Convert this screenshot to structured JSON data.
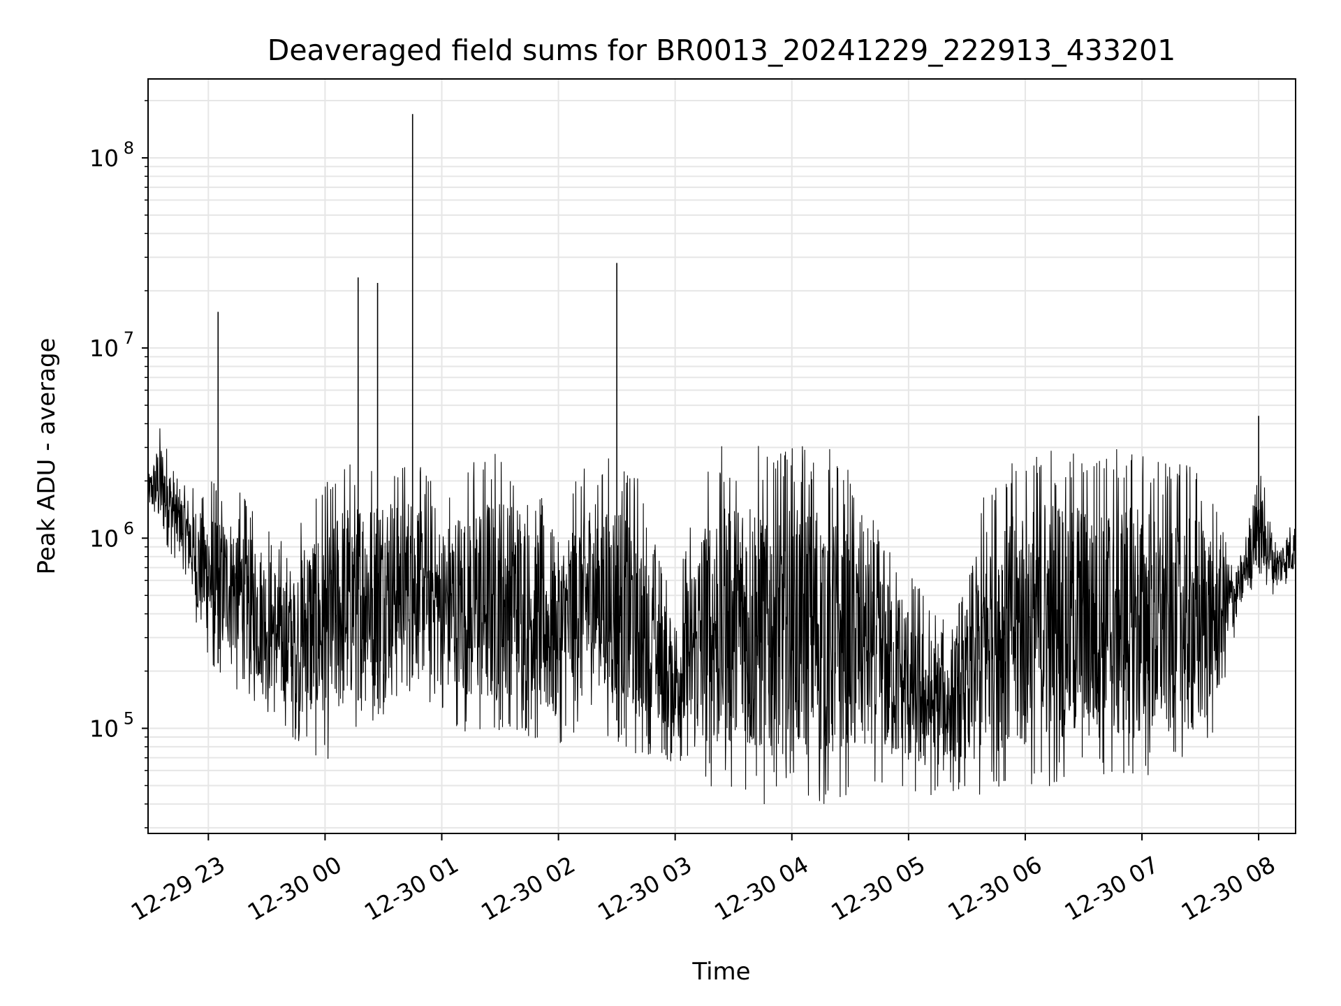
{
  "chart_data": {
    "type": "line",
    "title": "Deaveraged field sums for BR0013_20241229_222913_433201",
    "xlabel": "Time",
    "ylabel": "Peak ADU - average",
    "y_scale": "log",
    "ylim": [
      28000,
      260000000
    ],
    "xlim": [
      "2024-12-29 22:29",
      "2024-12-30 08:19"
    ],
    "grid": true,
    "line_color": "#000000",
    "grid_color": "#e6e6e6",
    "x_ticks": [
      {
        "label": "12-29 23",
        "time": "2024-12-29 23:00"
      },
      {
        "label": "12-30 00",
        "time": "2024-12-30 00:00"
      },
      {
        "label": "12-30 01",
        "time": "2024-12-30 01:00"
      },
      {
        "label": "12-30 02",
        "time": "2024-12-30 02:00"
      },
      {
        "label": "12-30 03",
        "time": "2024-12-30 03:00"
      },
      {
        "label": "12-30 04",
        "time": "2024-12-30 04:00"
      },
      {
        "label": "12-30 05",
        "time": "2024-12-30 05:00"
      },
      {
        "label": "12-30 06",
        "time": "2024-12-30 06:00"
      },
      {
        "label": "12-30 07",
        "time": "2024-12-30 07:00"
      },
      {
        "label": "12-30 08",
        "time": "2024-12-30 08:00"
      }
    ],
    "y_ticks": [
      {
        "base": "10",
        "exp": "5",
        "value": 100000
      },
      {
        "base": "10",
        "exp": "6",
        "value": 1000000
      },
      {
        "base": "10",
        "exp": "7",
        "value": 10000000
      },
      {
        "base": "10",
        "exp": "8",
        "value": 100000000
      }
    ],
    "series": [
      {
        "x": [
          "2024-12-29 22:29",
          "2024-12-29 22:35",
          "2024-12-29 22:40",
          "2024-12-29 22:45",
          "2024-12-29 22:50",
          "2024-12-29 22:55",
          "2024-12-29 23:00",
          "2024-12-29 23:05",
          "2024-12-29 23:10",
          "2024-12-29 23:15",
          "2024-12-29 23:20",
          "2024-12-29 23:30",
          "2024-12-29 23:40",
          "2024-12-29 23:50",
          "2024-12-30 00:00",
          "2024-12-30 00:10",
          "2024-12-30 00:20",
          "2024-12-30 00:30",
          "2024-12-30 00:40",
          "2024-12-30 00:50",
          "2024-12-30 01:00",
          "2024-12-30 01:10",
          "2024-12-30 01:20",
          "2024-12-30 01:30",
          "2024-12-30 01:40",
          "2024-12-30 01:50",
          "2024-12-30 02:00",
          "2024-12-30 02:10",
          "2024-12-30 02:20",
          "2024-12-30 02:30",
          "2024-12-30 02:40",
          "2024-12-30 02:50",
          "2024-12-30 03:00",
          "2024-12-30 03:10",
          "2024-12-30 03:20",
          "2024-12-30 03:30",
          "2024-12-30 03:40",
          "2024-12-30 03:50",
          "2024-12-30 04:00",
          "2024-12-30 04:10",
          "2024-12-30 04:20",
          "2024-12-30 04:30",
          "2024-12-30 04:40",
          "2024-12-30 04:50",
          "2024-12-30 05:00",
          "2024-12-30 05:10",
          "2024-12-30 05:20",
          "2024-12-30 05:30",
          "2024-12-30 05:40",
          "2024-12-30 05:50",
          "2024-12-30 06:00",
          "2024-12-30 06:10",
          "2024-12-30 06:20",
          "2024-12-30 06:30",
          "2024-12-30 06:40",
          "2024-12-30 06:50",
          "2024-12-30 07:00",
          "2024-12-30 07:10",
          "2024-12-30 07:20",
          "2024-12-30 07:30",
          "2024-12-30 07:40",
          "2024-12-30 07:50",
          "2024-12-30 08:00",
          "2024-12-30 08:05",
          "2024-12-30 08:10",
          "2024-12-30 08:15",
          "2024-12-30 08:19"
        ],
        "y_high": [
          2000000,
          3500000,
          2500000,
          1800000,
          1700000,
          1500000,
          1600000,
          1400000,
          1300000,
          1500000,
          1200000,
          900000,
          700000,
          1100000,
          1300000,
          1700000,
          1800000,
          1900000,
          1800000,
          1700000,
          1200000,
          1600000,
          1800000,
          1900000,
          1700000,
          1200000,
          900000,
          1600000,
          1900000,
          1800000,
          1500000,
          700000,
          400000,
          1000000,
          1900000,
          2000000,
          2000000,
          1900000,
          1900000,
          1900000,
          1800000,
          1400000,
          900000,
          700000,
          500000,
          350000,
          300000,
          400000,
          1500000,
          1700000,
          1800000,
          1900000,
          1900000,
          1900000,
          1900000,
          1900000,
          1800000,
          1600000,
          1700000,
          1500000,
          1000000,
          700000,
          2000000,
          1400000,
          900000,
          1100000,
          1200000
        ],
        "y_low": [
          1500000,
          1100000,
          900000,
          800000,
          600000,
          350000,
          250000,
          220000,
          250000,
          200000,
          180000,
          150000,
          120000,
          100000,
          90000,
          120000,
          150000,
          140000,
          200000,
          180000,
          150000,
          130000,
          120000,
          120000,
          130000,
          110000,
          100000,
          120000,
          140000,
          110000,
          100000,
          90000,
          80000,
          70000,
          65000,
          65000,
          60000,
          60000,
          60000,
          60000,
          60000,
          65000,
          70000,
          65000,
          60000,
          55000,
          55000,
          55000,
          60000,
          65000,
          70000,
          70000,
          75000,
          75000,
          75000,
          75000,
          75000,
          80000,
          85000,
          85000,
          150000,
          400000,
          700000,
          550000,
          550000,
          600000,
          700000
        ]
      }
    ],
    "spikes": [
      {
        "time": "2024-12-29 23:05",
        "value": 15500000
      },
      {
        "time": "2024-12-30 00:17",
        "value": 23500000
      },
      {
        "time": "2024-12-30 00:27",
        "value": 22000000
      },
      {
        "time": "2024-12-30 00:45",
        "value": 170000000
      },
      {
        "time": "2024-12-30 02:30",
        "value": 28000000
      },
      {
        "time": "2024-12-30 08:00",
        "value": 4400000
      }
    ]
  }
}
